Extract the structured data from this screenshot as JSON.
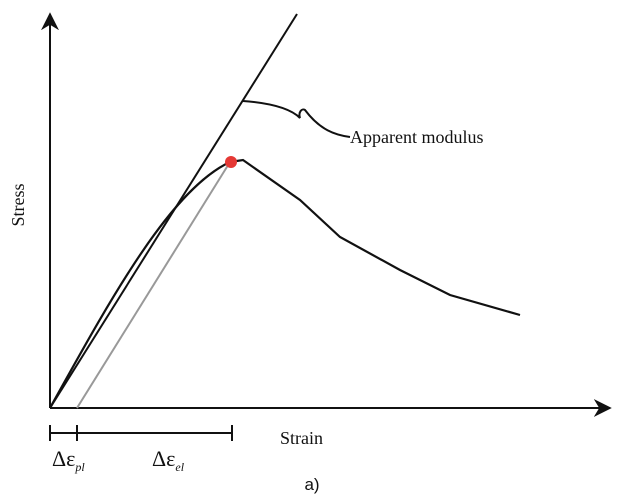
{
  "axes": {
    "y_label": "Stress",
    "x_label": "Strain"
  },
  "annotation": "Apparent modulus",
  "strain_parts": [
    {
      "symbol": "Δε",
      "subscript": "pl"
    },
    {
      "symbol": "Δε",
      "subscript": "el"
    }
  ],
  "caption": "a)"
}
